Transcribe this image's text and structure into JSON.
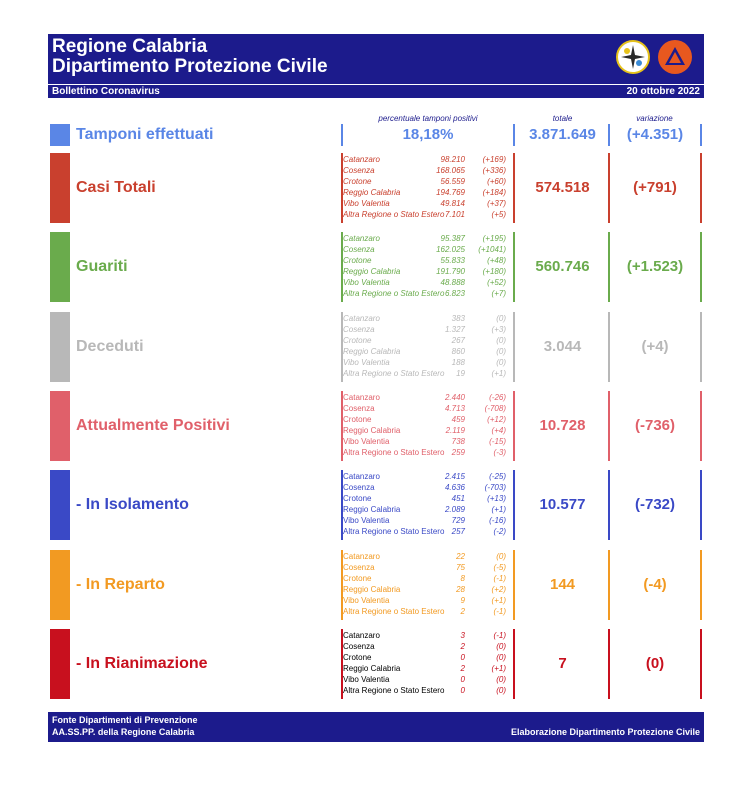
{
  "header": {
    "region": "Regione Calabria",
    "department": "Dipartimento Protezione Civile",
    "bulletin": "Bollettino Coronavirus",
    "date": "20 ottobre 2022"
  },
  "columns": {
    "positivity": "percentuale tamponi positivi",
    "total": "totale",
    "change": "variazione"
  },
  "tamponi": {
    "label": "Tamponi effettuati",
    "positivity": "18,18%",
    "total": "3.871.649",
    "change": "(+4.351)",
    "color": "#5a86e6"
  },
  "categories": [
    {
      "id": "casi",
      "label": "Casi Totali",
      "color": "#c9402e",
      "total": "574.518",
      "change": "(+791)",
      "rows": [
        {
          "name": "Catanzaro",
          "value": "98.210",
          "delta": "(+169)"
        },
        {
          "name": "Cosenza",
          "value": "168.065",
          "delta": "(+336)"
        },
        {
          "name": "Crotone",
          "value": "56.559",
          "delta": "(+60)"
        },
        {
          "name": "Reggio Calabria",
          "value": "194.769",
          "delta": "(+184)"
        },
        {
          "name": "Vibo Valentia",
          "value": "49.814",
          "delta": "(+37)"
        },
        {
          "name": "Altra Regione o Stato Estero",
          "value": "7.101",
          "delta": "(+5)"
        }
      ]
    },
    {
      "id": "guariti",
      "label": "Guariti",
      "color": "#6aab4c",
      "total": "560.746",
      "change": "(+1.523)",
      "rows": [
        {
          "name": "Catanzaro",
          "value": "95.387",
          "delta": "(+195)"
        },
        {
          "name": "Cosenza",
          "value": "162.025",
          "delta": "(+1041)"
        },
        {
          "name": "Crotone",
          "value": "55.833",
          "delta": "(+48)"
        },
        {
          "name": "Reggio Calabria",
          "value": "191.790",
          "delta": "(+180)"
        },
        {
          "name": "Vibo Valentia",
          "value": "48.888",
          "delta": "(+52)"
        },
        {
          "name": "Altra Regione o Stato Estero",
          "value": "6.823",
          "delta": "(+7)"
        }
      ]
    },
    {
      "id": "deceduti",
      "label": "Deceduti",
      "color": "#b8b8b8",
      "total": "3.044",
      "change": "(+4)",
      "rows": [
        {
          "name": "Catanzaro",
          "value": "383",
          "delta": "(0)"
        },
        {
          "name": "Cosenza",
          "value": "1.327",
          "delta": "(+3)"
        },
        {
          "name": "Crotone",
          "value": "267",
          "delta": "(0)"
        },
        {
          "name": "Reggio Calabria",
          "value": "860",
          "delta": "(0)"
        },
        {
          "name": "Vibo Valentia",
          "value": "188",
          "delta": "(0)"
        },
        {
          "name": "Altra Regione o Stato Estero",
          "value": "19",
          "delta": "(+1)"
        }
      ]
    },
    {
      "id": "positivi",
      "label": "Attualmente Positivi",
      "color": "#e0606a",
      "total": "10.728",
      "change": "(-736)",
      "rows": [
        {
          "name": "Catanzaro",
          "value": "2.440",
          "delta": "(-26)"
        },
        {
          "name": "Cosenza",
          "value": "4.713",
          "delta": "(-708)"
        },
        {
          "name": "Crotone",
          "value": "459",
          "delta": "(+12)"
        },
        {
          "name": "Reggio Calabria",
          "value": "2.119",
          "delta": "(+4)"
        },
        {
          "name": "Vibo Valentia",
          "value": "738",
          "delta": "(-15)"
        },
        {
          "name": "Altra Regione o Stato Estero",
          "value": "259",
          "delta": "(-3)"
        }
      ]
    },
    {
      "id": "isolamento",
      "label": "- In Isolamento",
      "color": "#3a49c6",
      "total": "10.577",
      "change": "(-732)",
      "rows": [
        {
          "name": "Catanzaro",
          "value": "2.415",
          "delta": "(-25)"
        },
        {
          "name": "Cosenza",
          "value": "4.636",
          "delta": "(-703)"
        },
        {
          "name": "Crotone",
          "value": "451",
          "delta": "(+13)"
        },
        {
          "name": "Reggio Calabria",
          "value": "2.089",
          "delta": "(+1)"
        },
        {
          "name": "Vibo Valentia",
          "value": "729",
          "delta": "(-16)"
        },
        {
          "name": "Altra Regione o Stato Estero",
          "value": "257",
          "delta": "(-2)"
        }
      ]
    },
    {
      "id": "reparto",
      "label": "- In Reparto",
      "color": "#f29a22",
      "total": "144",
      "change": "(-4)",
      "rows": [
        {
          "name": "Catanzaro",
          "value": "22",
          "delta": "(0)"
        },
        {
          "name": "Cosenza",
          "value": "75",
          "delta": "(-5)"
        },
        {
          "name": "Crotone",
          "value": "8",
          "delta": "(-1)"
        },
        {
          "name": "Reggio Calabria",
          "value": "28",
          "delta": "(+2)"
        },
        {
          "name": "Vibo Valentia",
          "value": "9",
          "delta": "(+1)"
        },
        {
          "name": "Altra Regione o Stato Estero",
          "value": "2",
          "delta": "(-1)"
        }
      ]
    },
    {
      "id": "rianimazione",
      "label": "- In Rianimazione",
      "color": "#c8101e",
      "total": "7",
      "change": "(0)",
      "rows": [
        {
          "name": "Catanzaro",
          "value": "3",
          "delta": "(-1)"
        },
        {
          "name": "Cosenza",
          "value": "2",
          "delta": "(0)"
        },
        {
          "name": "Crotone",
          "value": "0",
          "delta": "(0)"
        },
        {
          "name": "Reggio Calabria",
          "value": "2",
          "delta": "(+1)"
        },
        {
          "name": "Vibo Valentia",
          "value": "0",
          "delta": "(0)"
        },
        {
          "name": "Altra Regione o Stato Estero",
          "value": "0",
          "delta": "(0)"
        }
      ]
    }
  ],
  "footer": {
    "source1": "Fonte Dipartimenti di Prevenzione",
    "source2": "AA.SS.PP.  della Regione Calabria",
    "elaboration": "Elaborazione Dipartimento Protezione Civile"
  },
  "logos": {
    "left": "calabria-region-logo",
    "right": "protezione-civile-logo"
  }
}
